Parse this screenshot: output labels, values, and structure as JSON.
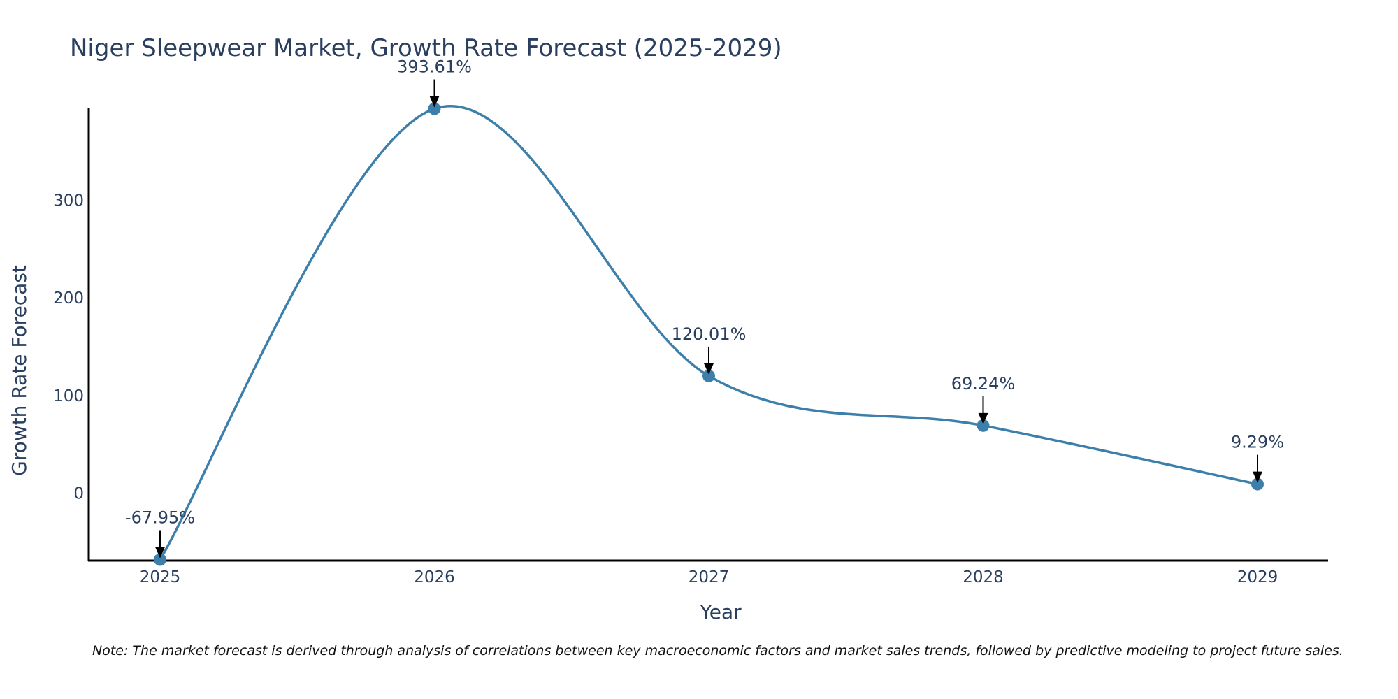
{
  "chart_data": {
    "type": "line",
    "title": "Niger Sleepwear Market, Growth Rate Forecast (2025-2029)",
    "xlabel": "Year",
    "ylabel": "Growth Rate Forecast",
    "categories": [
      "2025",
      "2026",
      "2027",
      "2028",
      "2029"
    ],
    "series": [
      {
        "name": "Growth Rate Forecast",
        "values": [
          -67.95,
          393.61,
          120.01,
          69.24,
          9.29
        ]
      }
    ],
    "data_labels": [
      "-67.95%",
      "393.61%",
      "120.01%",
      "69.24%",
      "9.29%"
    ],
    "y_ticks": [
      0,
      100,
      200,
      300
    ],
    "ylim": [
      -69,
      394
    ],
    "line_shape": "spline",
    "grid": false,
    "colors": {
      "line": "#3d7fab",
      "marker": "#3d7fab",
      "axis": "#000000",
      "arrow": "#000000"
    }
  },
  "footer": {
    "note": "Note: The market forecast is derived through analysis of correlations between key macroeconomic factors and market sales trends, followed by predictive modeling to project future sales."
  }
}
